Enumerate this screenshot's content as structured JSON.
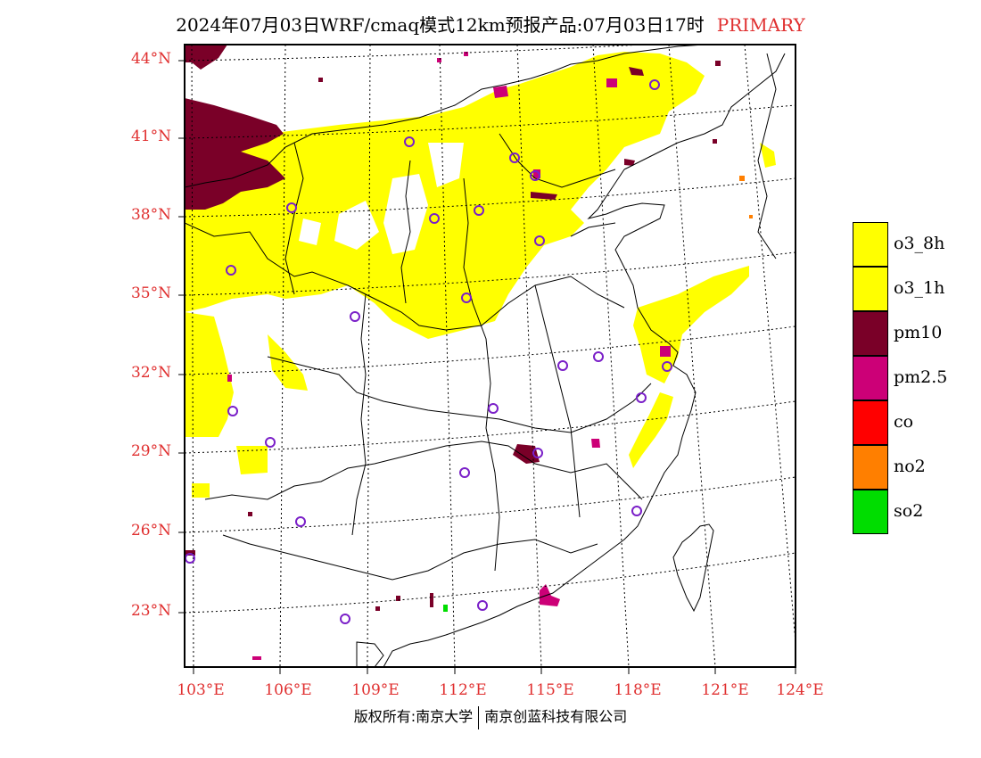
{
  "title": {
    "text": "2024年07月03日WRF/cmaq模式12km预报产品:07月03日17时",
    "tag": "PRIMARY"
  },
  "axes": {
    "lat_labels": [
      "44°N",
      "41°N",
      "38°N",
      "35°N",
      "32°N",
      "29°N",
      "26°N",
      "23°N"
    ],
    "lon_labels": [
      "103°E",
      "106°E",
      "109°E",
      "112°E",
      "115°E",
      "118°E",
      "121°E",
      "124°E"
    ]
  },
  "legend": [
    {
      "label": "o3_8h",
      "color": "#ffff00"
    },
    {
      "label": "o3_1h",
      "color": "#ffff00"
    },
    {
      "label": "pm10",
      "color": "#7a0028"
    },
    {
      "label": "pm2.5",
      "color": "#cc0077"
    },
    {
      "label": "co",
      "color": "#ff0000"
    },
    {
      "label": "no2",
      "color": "#ff7f00"
    },
    {
      "label": "so2",
      "color": "#00dd00"
    }
  ],
  "footer": {
    "left": "版权所有:南京大学",
    "right": "南京创蓝科技有限公司"
  }
}
